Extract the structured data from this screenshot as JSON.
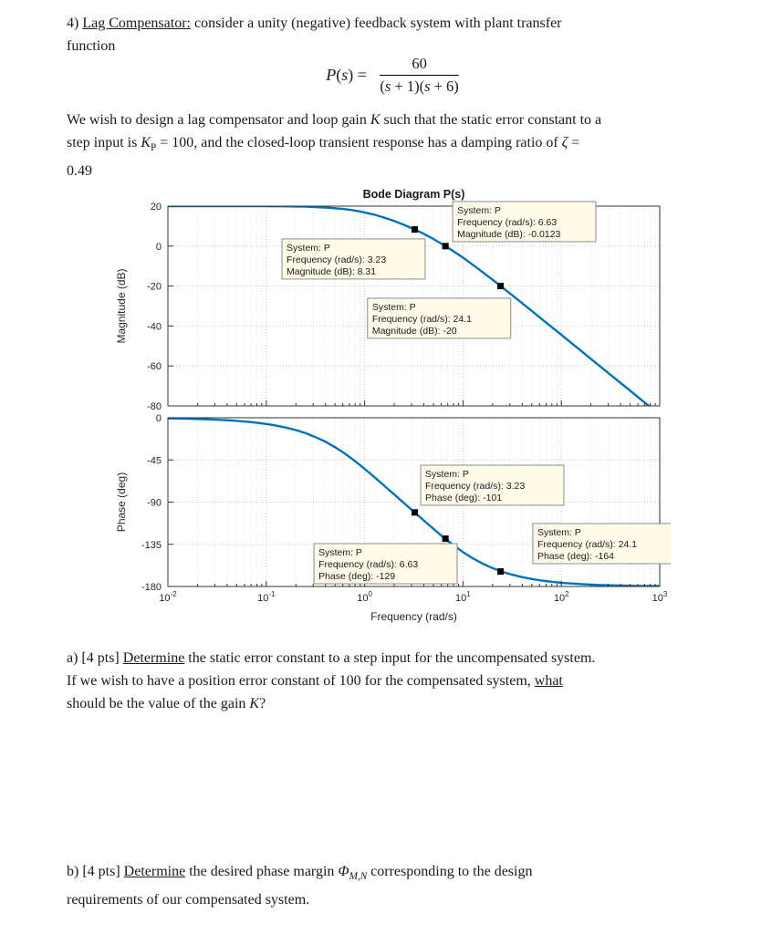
{
  "page": {
    "heading_segments": [
      {
        "t": "4) "
      },
      {
        "t": "Lag Compensator:",
        "u": true
      },
      {
        "t": " consider a unity (negative) feedback system with plant transfer"
      },
      {
        "br": true
      },
      {
        "t": "function"
      }
    ],
    "formula": {
      "lhs_segments": [
        {
          "t": "P",
          "i": true
        },
        {
          "t": "("
        },
        {
          "t": "s",
          "i": true
        },
        {
          "t": ") ="
        }
      ],
      "numerator": "60",
      "den_segments": [
        {
          "t": "("
        },
        {
          "t": "s",
          "i": true
        },
        {
          "t": " + 1)("
        },
        {
          "t": "s",
          "i": true
        },
        {
          "t": " + 6)"
        }
      ]
    },
    "intro_segments": [
      {
        "t": "We wish to design a lag compensator and loop gain "
      },
      {
        "t": "K",
        "i": true
      },
      {
        "t": " such that the static error constant to a"
      },
      {
        "br": true
      },
      {
        "t": "step input is "
      },
      {
        "t": "K",
        "i": true
      },
      {
        "t": "P",
        "sub": true
      },
      {
        "t": " = 100, and the closed-loop transient response has a damping ratio of "
      },
      {
        "t": "ζ",
        "i": true
      },
      {
        "t": " ="
      },
      {
        "br": true
      },
      {
        "t": "0.49"
      }
    ],
    "question_a_segments": [
      {
        "t": "a) [4 pts] "
      },
      {
        "t": "Determine",
        "u": true
      },
      {
        "t": " the static error constant to a step input for the uncompensated system."
      },
      {
        "br": true
      },
      {
        "t": "If we wish to have a position error constant of 100 for the compensated system, "
      },
      {
        "t": "what",
        "u": true
      },
      {
        "br": true
      },
      {
        "t": "should be the value of the gain "
      },
      {
        "t": "K",
        "i": true
      },
      {
        "t": "?"
      }
    ],
    "question_b_segments": [
      {
        "t": "b) [4 pts] "
      },
      {
        "t": "Determine",
        "u": true
      },
      {
        "t": " the desired phase margin "
      },
      {
        "t": "Φ",
        "i": true
      },
      {
        "t": "M,N",
        "sub": true,
        "i": true
      },
      {
        "t": " corresponding to the design"
      },
      {
        "br": true
      },
      {
        "t": "requirements of our compensated system."
      }
    ]
  },
  "chart_data": {
    "type": "line",
    "title": "Bode Diagram P(s)",
    "xlabel": "Frequency (rad/s)",
    "x_scale": "log",
    "x_range": [
      0.01,
      1000
    ],
    "x_tick_exponents": [
      -2,
      -1,
      0,
      1,
      2,
      3
    ],
    "line_color": "#0072BD",
    "marker_color": "#000000",
    "datatip_bg": "#fffbe8",
    "datatip_border": "#8c8c8c",
    "frequencies": [
      0.01,
      0.0126,
      0.0158,
      0.02,
      0.0251,
      0.0316,
      0.0398,
      0.0501,
      0.0631,
      0.0794,
      0.1,
      0.126,
      0.158,
      0.2,
      0.251,
      0.316,
      0.398,
      0.501,
      0.631,
      0.794,
      1,
      1.259,
      1.585,
      1.995,
      2.512,
      3.162,
      3.981,
      5.012,
      6.31,
      7.943,
      10,
      12.59,
      15.85,
      19.95,
      25.12,
      31.62,
      39.81,
      50.12,
      63.1,
      79.43,
      100,
      125.9,
      158.5,
      199.5,
      251.2,
      316.2,
      398.1,
      501.2,
      631,
      794.3,
      1000
    ],
    "subplots": [
      {
        "name": "magnitude",
        "ylabel": "Magnitude (dB)",
        "ylim": [
          -80,
          20
        ],
        "yticks": [
          20,
          0,
          -20,
          -40,
          -60,
          -80
        ],
        "values": [
          20,
          20,
          20,
          20,
          20,
          20,
          20,
          19.99,
          19.98,
          19.97,
          19.96,
          19.93,
          19.89,
          19.82,
          19.72,
          19.56,
          19.32,
          18.96,
          18.49,
          17.8,
          16.87,
          15.69,
          14.25,
          12.57,
          10.66,
          8.52,
          6.15,
          3.53,
          0.66,
          -2.47,
          -5.82,
          -9.35,
          -13.04,
          -16.82,
          -20.69,
          -24.59,
          -28.54,
          -32.5,
          -36.48,
          -40.46,
          -44.45,
          -48.45,
          -52.44,
          -56.44,
          -60.44,
          -64.44,
          -68.44,
          -72.44,
          -76.44,
          -80.44,
          -84.44
        ],
        "markers": [
          {
            "x": 3.23,
            "y": 8.31
          },
          {
            "x": 6.63,
            "y": -0.0123
          },
          {
            "x": 24.1,
            "y": -20
          }
        ],
        "datatips": [
          {
            "fx": 0.579,
            "fy": -0.023,
            "lines": [
              "System: P",
              "Frequency (rad/s): 6.63",
              "Magnitude (dB): -0.0123"
            ]
          },
          {
            "fx": 0.232,
            "fy": 0.164,
            "lines": [
              "System: P",
              "Frequency (rad/s): 3.23",
              "Magnitude (dB): 8.31"
            ]
          },
          {
            "fx": 0.406,
            "fy": 0.461,
            "lines": [
              "System: P",
              "Frequency (rad/s): 24.1",
              "Magnitude (dB): -20"
            ]
          }
        ]
      },
      {
        "name": "phase",
        "ylabel": "Phase (deg)",
        "ylim": [
          -180,
          0
        ],
        "yticks": [
          0,
          -45,
          -90,
          -135,
          -180
        ],
        "values": [
          -0.67,
          -0.84,
          -1.06,
          -1.34,
          -1.68,
          -2.11,
          -2.66,
          -3.35,
          -4.21,
          -5.3,
          -6.66,
          -8.37,
          -10.51,
          -13.18,
          -16.49,
          -20.58,
          -25.53,
          -31.41,
          -38.25,
          -45.98,
          -54.46,
          -63.4,
          -72.56,
          -81.76,
          -91.01,
          -100.24,
          -109.47,
          -118.59,
          -127.44,
          -135.76,
          -143.32,
          -149.98,
          -155.65,
          -160.39,
          -164.29,
          -167.45,
          -169.99,
          -172.03,
          -173.66,
          -174.96,
          -176,
          -176.81,
          -177.47,
          -177.99,
          -178.4,
          -178.73,
          -179,
          -179.2,
          -179.37,
          -179.5,
          -179.6
        ],
        "markers": [
          {
            "x": 3.23,
            "y": -101
          },
          {
            "x": 6.63,
            "y": -129
          },
          {
            "x": 24.1,
            "y": -164
          }
        ],
        "datatips": [
          {
            "fx": 0.514,
            "fy": 0.281,
            "lines": [
              "System: P",
              "Frequency (rad/s): 3.23",
              "Phase (deg): -101"
            ]
          },
          {
            "fx": 0.742,
            "fy": 0.627,
            "lines": [
              "System: P",
              "Frequency (rad/s): 24.1",
              "Phase (deg): -164"
            ]
          },
          {
            "fx": 0.297,
            "fy": 0.746,
            "lines": [
              "System: P",
              "Frequency (rad/s): 6.63",
              "Phase (deg): -129"
            ]
          }
        ]
      }
    ]
  }
}
